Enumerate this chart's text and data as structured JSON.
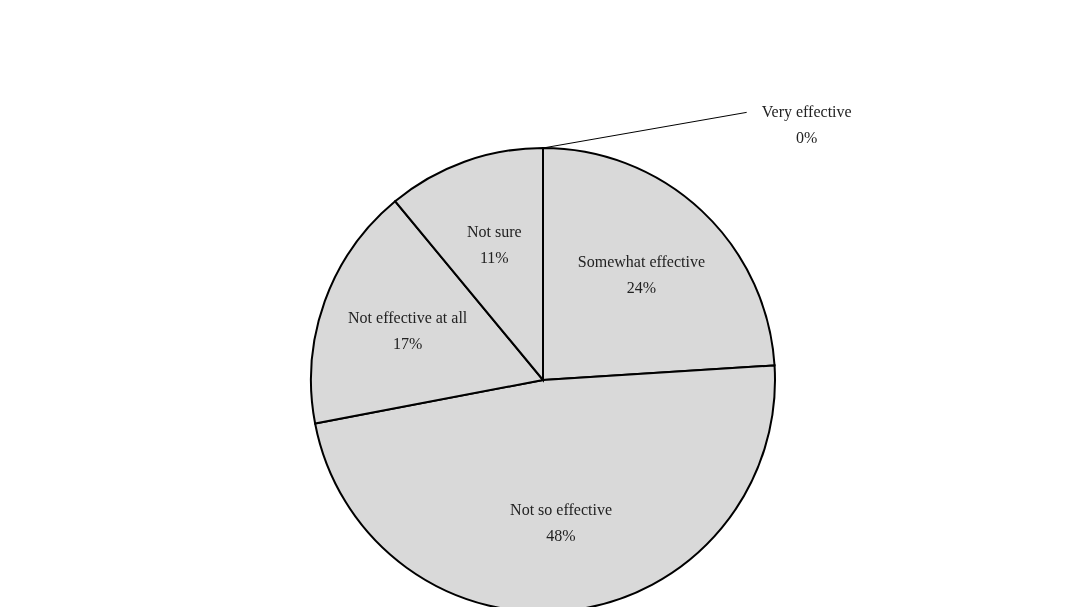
{
  "chart_data": {
    "type": "pie",
    "categories": [
      "Very effective",
      "Somewhat effective",
      "Not so effective",
      "Not effective at all",
      "Not sure"
    ],
    "values": [
      0,
      24,
      48,
      17,
      11
    ],
    "value_labels": [
      "0%",
      "24%",
      "48%",
      "17%",
      "11%"
    ],
    "colors": [
      "#d9d9d9",
      "#d9d9d9",
      "#d9d9d9",
      "#d9d9d9",
      "#d9d9d9"
    ]
  }
}
